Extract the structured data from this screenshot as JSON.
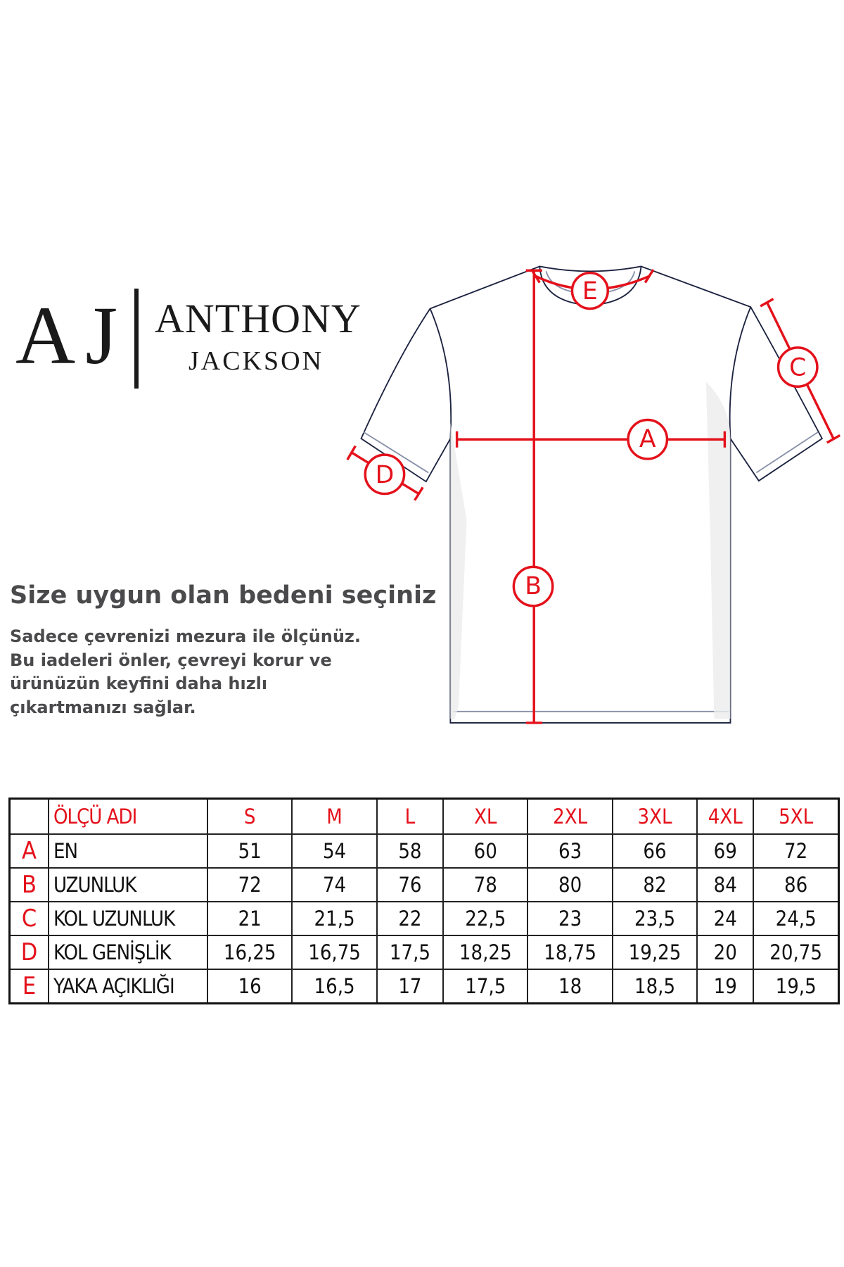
{
  "brand": {
    "monogram": "AJ",
    "name_line1": "ANTHONY",
    "name_line2": "JACKSON"
  },
  "heading": "Size uygun olan bedeni seçiniz",
  "paragraph": [
    "Sadece çevrenizi mezura ile ölçünüz.",
    "Bu iadeleri önler, çevreyi korur ve",
    "ürünüzün keyfini daha hızlı",
    "çıkartmanızı sağlar."
  ],
  "diagram": {
    "labels": {
      "a": "A",
      "b": "B",
      "c": "C",
      "d": "D",
      "e": "E"
    },
    "accent": "#e4111b",
    "outline": "#1c2340"
  },
  "table": {
    "header": "ÖLÇÜ ADI",
    "sizes": [
      "S",
      "M",
      "L",
      "XL",
      "2XL",
      "3XL",
      "4XL",
      "5XL"
    ],
    "rows": [
      {
        "letter": "A",
        "name": "EN",
        "values": [
          "51",
          "54",
          "58",
          "60",
          "63",
          "66",
          "69",
          "72"
        ]
      },
      {
        "letter": "B",
        "name": "UZUNLUK",
        "values": [
          "72",
          "74",
          "76",
          "78",
          "80",
          "82",
          "84",
          "86"
        ]
      },
      {
        "letter": "C",
        "name": "KOL UZUNLUK",
        "values": [
          "21",
          "21,5",
          "22",
          "22,5",
          "23",
          "23,5",
          "24",
          "24,5"
        ]
      },
      {
        "letter": "D",
        "name": "KOL GENİŞLİK",
        "values": [
          "16,25",
          "16,75",
          "17,5",
          "18,25",
          "18,75",
          "19,25",
          "20",
          "20,75"
        ]
      },
      {
        "letter": "E",
        "name": "YAKA AÇIKLIĞI",
        "values": [
          "16",
          "16,5",
          "17",
          "17,5",
          "18",
          "18,5",
          "19",
          "19,5"
        ]
      }
    ]
  }
}
